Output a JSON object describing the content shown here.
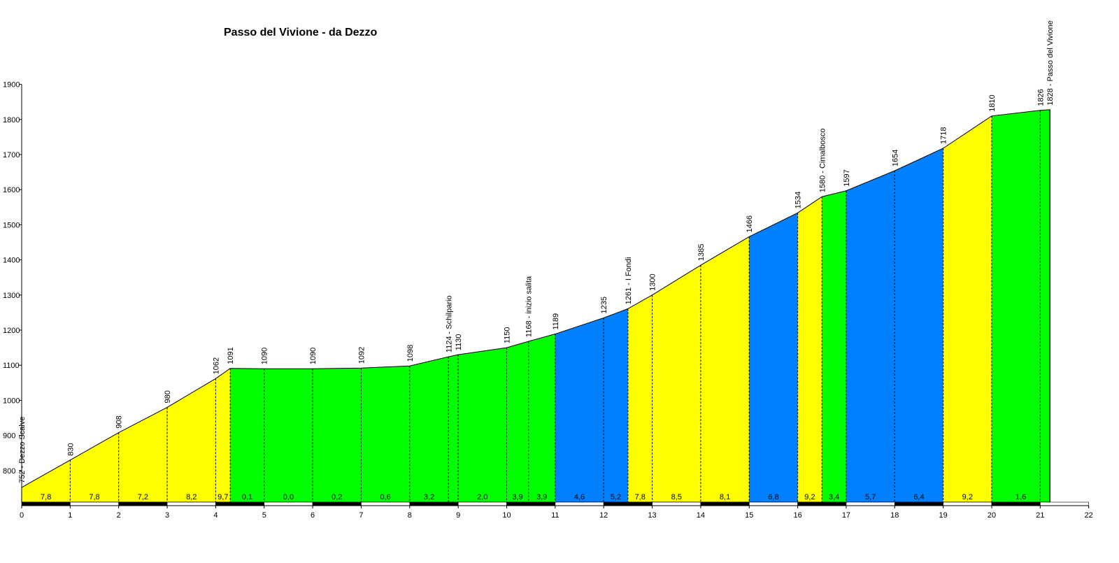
{
  "chart_data": {
    "type": "area",
    "title": "Passo del Vivione - da Dezzo",
    "xlabel": "",
    "ylabel": "",
    "xlim": [
      0,
      22
    ],
    "ylim": [
      710,
      1900
    ],
    "x_ticks": [
      "0",
      "1",
      "2",
      "3",
      "4",
      "5",
      "6",
      "7",
      "8",
      "9",
      "10",
      "11",
      "12",
      "13",
      "14",
      "15",
      "16",
      "17",
      "18",
      "19",
      "20",
      "21",
      "22"
    ],
    "y_ticks": [
      "800",
      "900",
      "1000",
      "1100",
      "1200",
      "1300",
      "1400",
      "1500",
      "1600",
      "1700",
      "1800",
      "1900"
    ],
    "grid": false,
    "points": [
      {
        "km": 0,
        "alt": 752,
        "label": "752 - Dezzo Scalve"
      },
      {
        "km": 1,
        "alt": 830,
        "label": "830"
      },
      {
        "km": 2,
        "alt": 908,
        "label": "908"
      },
      {
        "km": 3,
        "alt": 980,
        "label": "980"
      },
      {
        "km": 4,
        "alt": 1062,
        "label": "1062"
      },
      {
        "km": 4.3,
        "alt": 1091,
        "label": "1091"
      },
      {
        "km": 5,
        "alt": 1090,
        "label": "1090"
      },
      {
        "km": 6,
        "alt": 1090,
        "label": "1090"
      },
      {
        "km": 7,
        "alt": 1092,
        "label": "1092"
      },
      {
        "km": 8,
        "alt": 1098,
        "label": "1098"
      },
      {
        "km": 8.8,
        "alt": 1124,
        "label": "1124 - Schilpario"
      },
      {
        "km": 9,
        "alt": 1130,
        "label": "1130"
      },
      {
        "km": 10,
        "alt": 1150,
        "label": "1150"
      },
      {
        "km": 10.45,
        "alt": 1168,
        "label": "1168 - inizio salita"
      },
      {
        "km": 11,
        "alt": 1189,
        "label": "1189"
      },
      {
        "km": 12,
        "alt": 1235,
        "label": "1235"
      },
      {
        "km": 12.5,
        "alt": 1261,
        "label": "1261 - I Fondi"
      },
      {
        "km": 13,
        "alt": 1300,
        "label": "1300"
      },
      {
        "km": 14,
        "alt": 1385,
        "label": "1385"
      },
      {
        "km": 15,
        "alt": 1466,
        "label": "1466"
      },
      {
        "km": 16,
        "alt": 1534,
        "label": "1534"
      },
      {
        "km": 16.5,
        "alt": 1580,
        "label": "1580 - Cimalbosco"
      },
      {
        "km": 17,
        "alt": 1597,
        "label": "1597"
      },
      {
        "km": 18,
        "alt": 1654,
        "label": "1654"
      },
      {
        "km": 19,
        "alt": 1718,
        "label": "1718"
      },
      {
        "km": 20,
        "alt": 1810,
        "label": "1810"
      },
      {
        "km": 21,
        "alt": 1826,
        "label": "1826"
      },
      {
        "km": 21.2,
        "alt": 1828,
        "label": "1828 - Passo del Vivione"
      }
    ],
    "segments": [
      {
        "from": 0,
        "to": 1,
        "gradient": "7,8",
        "color": "#ffff00"
      },
      {
        "from": 1,
        "to": 2,
        "gradient": "7,8",
        "color": "#ffff00"
      },
      {
        "from": 2,
        "to": 3,
        "gradient": "7,2",
        "color": "#ffff00"
      },
      {
        "from": 3,
        "to": 4,
        "gradient": "8,2",
        "color": "#ffff00"
      },
      {
        "from": 4,
        "to": 4.3,
        "gradient": "9,7",
        "color": "#ffff00"
      },
      {
        "from": 4.3,
        "to": 5,
        "gradient": "0,1",
        "color": "#00ff00"
      },
      {
        "from": 5,
        "to": 6,
        "gradient": "0,0",
        "color": "#00ff00"
      },
      {
        "from": 6,
        "to": 7,
        "gradient": "0,2",
        "color": "#00ff00"
      },
      {
        "from": 7,
        "to": 8,
        "gradient": "0,6",
        "color": "#00ff00"
      },
      {
        "from": 8,
        "to": 8.8,
        "gradient": "3,2",
        "color": "#00ff00"
      },
      {
        "from": 8.8,
        "to": 9,
        "gradient": "",
        "color": "#00ff00"
      },
      {
        "from": 9,
        "to": 10,
        "gradient": "2,0",
        "color": "#00ff00"
      },
      {
        "from": 10,
        "to": 10.45,
        "gradient": "3,9",
        "color": "#00ff00"
      },
      {
        "from": 10.45,
        "to": 11,
        "gradient": "3,9",
        "color": "#00ff00"
      },
      {
        "from": 11,
        "to": 12,
        "gradient": "4,6",
        "color": "#0080ff"
      },
      {
        "from": 12,
        "to": 12.5,
        "gradient": "5,2",
        "color": "#0080ff"
      },
      {
        "from": 12.5,
        "to": 13,
        "gradient": "7,8",
        "color": "#ffff00"
      },
      {
        "from": 13,
        "to": 14,
        "gradient": "8,5",
        "color": "#ffff00"
      },
      {
        "from": 14,
        "to": 15,
        "gradient": "8,1",
        "color": "#ffff00"
      },
      {
        "from": 15,
        "to": 16,
        "gradient": "6,8",
        "color": "#0080ff"
      },
      {
        "from": 16,
        "to": 16.5,
        "gradient": "9,2",
        "color": "#ffff00"
      },
      {
        "from": 16.5,
        "to": 17,
        "gradient": "3,4",
        "color": "#00ff00"
      },
      {
        "from": 17,
        "to": 18,
        "gradient": "5,7",
        "color": "#0080ff"
      },
      {
        "from": 18,
        "to": 19,
        "gradient": "6,4",
        "color": "#0080ff"
      },
      {
        "from": 19,
        "to": 20,
        "gradient": "9,2",
        "color": "#ffff00"
      },
      {
        "from": 20,
        "to": 21.2,
        "gradient": "1,6",
        "color": "#00ff00"
      }
    ]
  }
}
